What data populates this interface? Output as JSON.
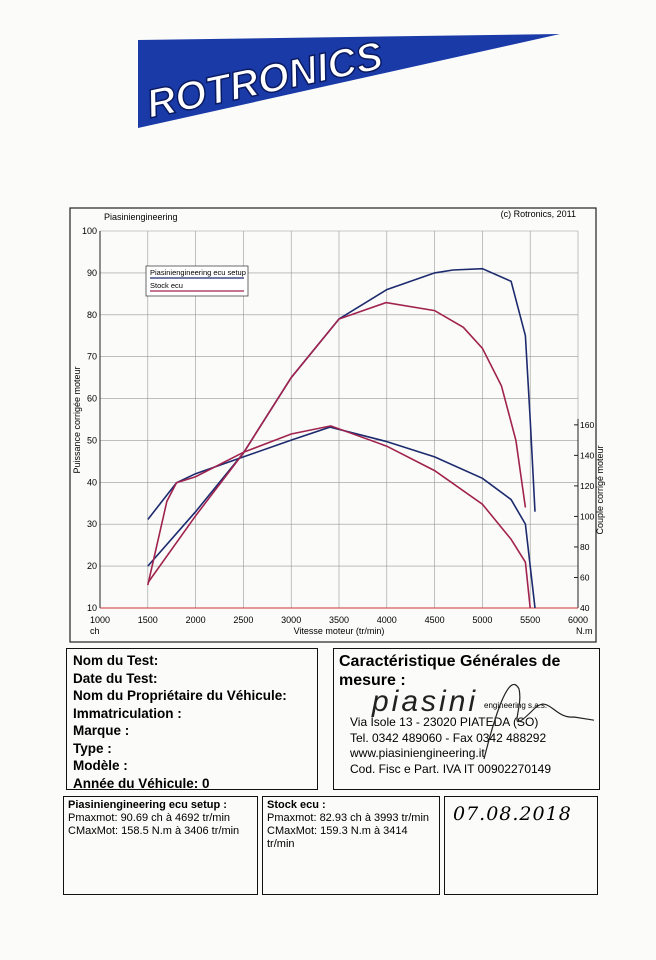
{
  "header": {
    "brand": "ROTRONICS"
  },
  "chart_data": {
    "type": "line",
    "owner": "Piasiniengineering",
    "copyright": "(c) Rotronics, 2011",
    "xlabel": "Vitesse moteur (tr/min)",
    "xunit_left": "ch",
    "xunit_right": "N.m",
    "ylabel": "Puissance corrigée moteur",
    "y2label": "Couple corrigé moteur",
    "xlim": [
      1000,
      6000
    ],
    "xticks": [
      1000,
      1500,
      2000,
      2500,
      3000,
      3500,
      4000,
      4500,
      5000,
      5500,
      6000
    ],
    "ylim": [
      10,
      100
    ],
    "yticks": [
      10,
      20,
      30,
      40,
      50,
      60,
      70,
      80,
      90,
      100
    ],
    "y2lim": [
      40,
      287
    ],
    "y2ticks": [
      40,
      60,
      80,
      100,
      120,
      140,
      160
    ],
    "grid": true,
    "series": [
      {
        "name": "Piasiniengineering ecu setup",
        "color": "#1c2a6e",
        "power_x": [
          1500,
          2000,
          2500,
          3000,
          3500,
          4000,
          4500,
          4692,
          5000,
          5300,
          5450,
          5500,
          5550
        ],
        "power": [
          20,
          33,
          47,
          65,
          79,
          86,
          90,
          90.7,
          91,
          88,
          75,
          55,
          33
        ],
        "torque_x": [
          1500,
          1800,
          2000,
          2500,
          3000,
          3406,
          4000,
          4500,
          5000,
          5300,
          5450,
          5550
        ],
        "torque": [
          98,
          122,
          128,
          139,
          150,
          158.5,
          149,
          139,
          125,
          111,
          95,
          40
        ]
      },
      {
        "name": "Stock ecu",
        "color": "#a0234f",
        "power_x": [
          1500,
          2000,
          2500,
          3000,
          3500,
          3993,
          4500,
          4800,
          5000,
          5200,
          5350,
          5450
        ],
        "power": [
          16,
          32,
          47,
          65,
          79,
          82.9,
          81,
          77,
          72,
          63,
          50,
          34
        ],
        "torque_x": [
          1500,
          1700,
          1800,
          2000,
          2500,
          3000,
          3414,
          4000,
          4500,
          5000,
          5300,
          5450,
          5500
        ],
        "torque": [
          55,
          110,
          122,
          126,
          142,
          154,
          159.3,
          146,
          130,
          108,
          85,
          70,
          40
        ]
      }
    ]
  },
  "test": [
    "Nom du Test:",
    "Date du Test:",
    "Nom du Propriétaire du Véhicule:",
    "Immatriculation :",
    "Marque :",
    "Type :",
    "Modèle :",
    "Année du Véhicule: 0"
  ],
  "company": {
    "title": "Caractéristique Générales de mesure :",
    "logo": "piasini",
    "logo_sub": "engineering s.a.s.",
    "lines": [
      "Via Isole 13 - 23020 PIATEDA (SO)",
      "Tel. 0342 489060 - Fax 0342 488292",
      "www.piasiniengineering.it",
      "Cod. Fisc e Part. IVA IT 00902270149"
    ]
  },
  "results": [
    {
      "title": "Piasiniengineering ecu setup :",
      "lines": [
        "Pmaxmot: 90.69 ch à 4692 tr/min",
        "CMaxMot: 158.5 N.m à 3406 tr/min"
      ]
    },
    {
      "title": "Stock ecu :",
      "lines": [
        "Pmaxmot: 82.93 ch à 3993 tr/min",
        "CMaxMot: 159.3 N.m à 3414 tr/min"
      ]
    }
  ],
  "date": "07.08.2018"
}
